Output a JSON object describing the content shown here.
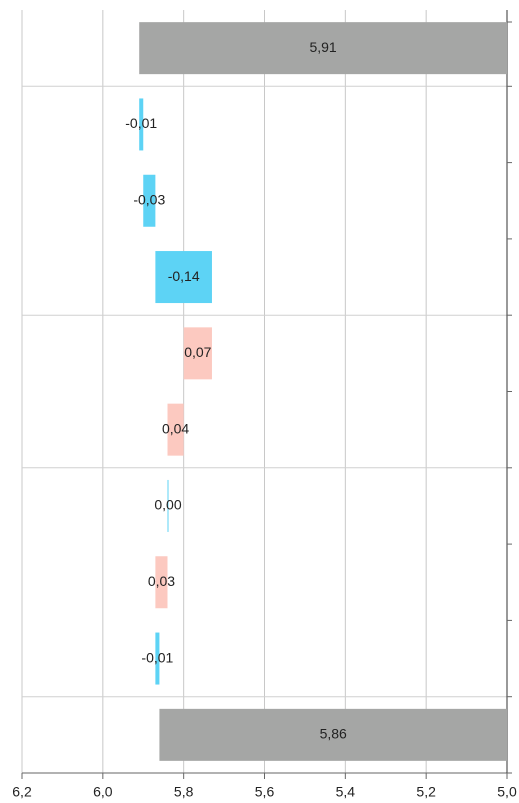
{
  "chart_data": {
    "type": "waterfall",
    "orientation": "horizontal",
    "categories": [
      null,
      null,
      null,
      null,
      null,
      null,
      null,
      null,
      null,
      null
    ],
    "measure": [
      "total",
      "relative",
      "relative",
      "relative",
      "relative",
      "relative",
      "relative",
      "relative",
      "relative",
      "total"
    ],
    "values": [
      5.91,
      -0.01,
      -0.03,
      -0.14,
      0.07,
      0.04,
      0.0,
      0.03,
      -0.01,
      5.86
    ],
    "value_labels": [
      "5,91",
      "-0,01",
      "-0,03",
      "-0,14",
      "0,07",
      "0,04",
      "0,00",
      "0,03",
      "-0,01",
      "5,86"
    ],
    "total_color": "#a5a6a5",
    "decreasing_color": "#5dd3f5",
    "increasing_color": "#fcc9c0",
    "xlim": [
      6.2,
      5.0
    ],
    "xticks": [
      {
        "value": 6.2,
        "label": "6,2"
      },
      {
        "value": 6.0,
        "label": "6,0"
      },
      {
        "value": 5.8,
        "label": "5,8"
      },
      {
        "value": 5.6,
        "label": "5,6"
      },
      {
        "value": 5.4,
        "label": "5,4"
      },
      {
        "value": 5.2,
        "label": "5,2"
      },
      {
        "value": 5.0,
        "label": "5,0"
      }
    ],
    "grid": true
  }
}
